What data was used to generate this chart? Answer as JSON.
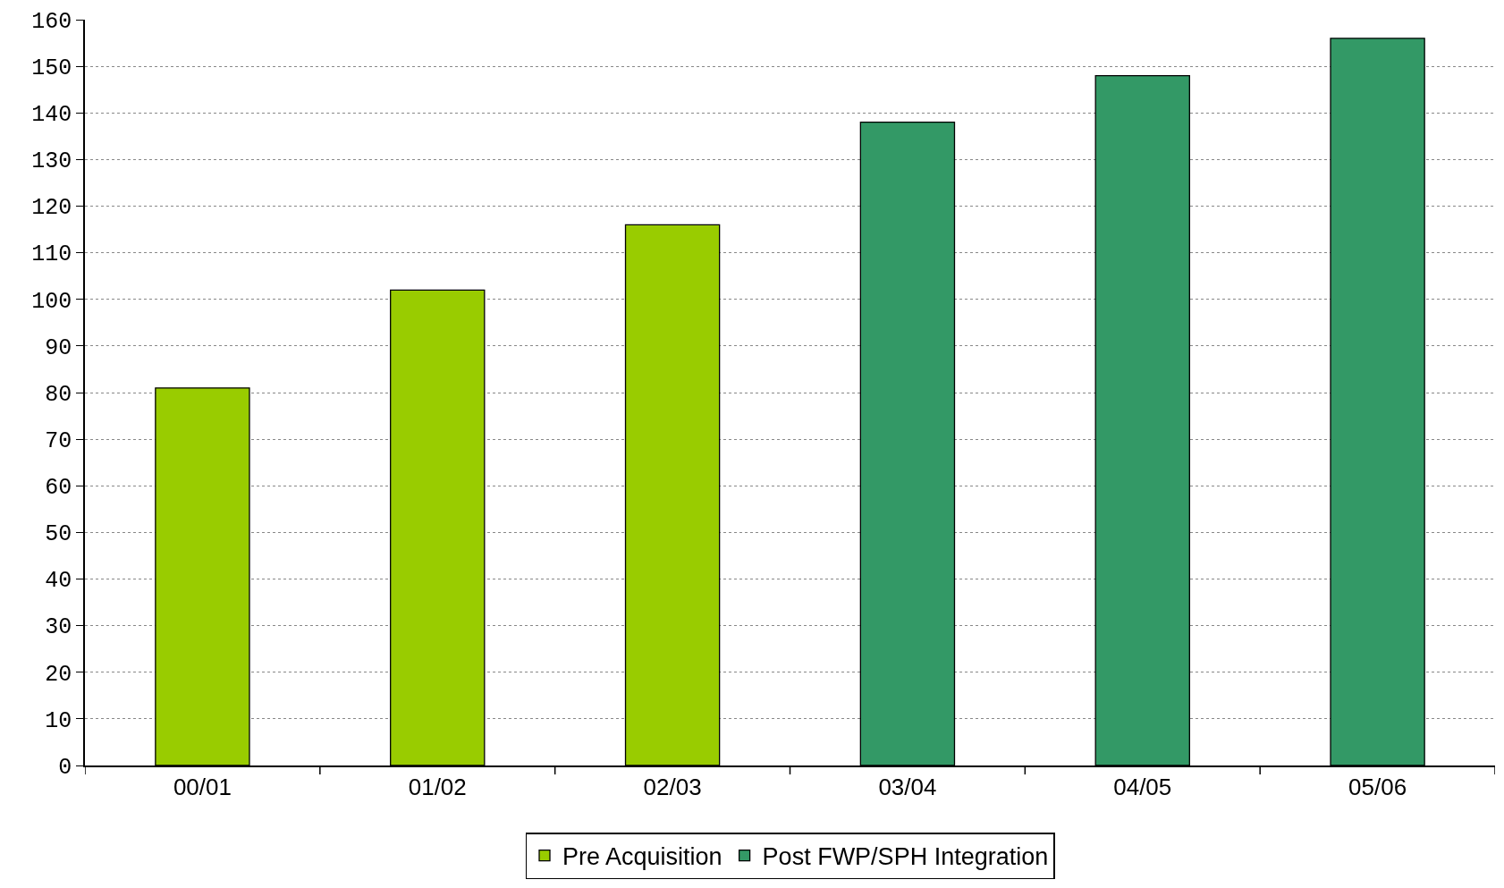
{
  "chart_data": {
    "type": "bar",
    "categories": [
      "00/01",
      "01/02",
      "02/03",
      "03/04",
      "04/05",
      "05/06"
    ],
    "series": [
      {
        "name": "Pre Acquisition",
        "color": "#99cc00",
        "values": [
          81,
          102,
          116,
          null,
          null,
          null
        ]
      },
      {
        "name": "Post FWP/SPH Integration",
        "color": "#339966",
        "values": [
          null,
          null,
          null,
          138,
          148,
          156
        ]
      }
    ],
    "ylim": [
      0,
      160
    ],
    "yticks": [
      0,
      10,
      20,
      30,
      40,
      50,
      60,
      70,
      80,
      90,
      100,
      110,
      120,
      130,
      140,
      150,
      160
    ],
    "grid": "y",
    "legend": "bottom"
  }
}
